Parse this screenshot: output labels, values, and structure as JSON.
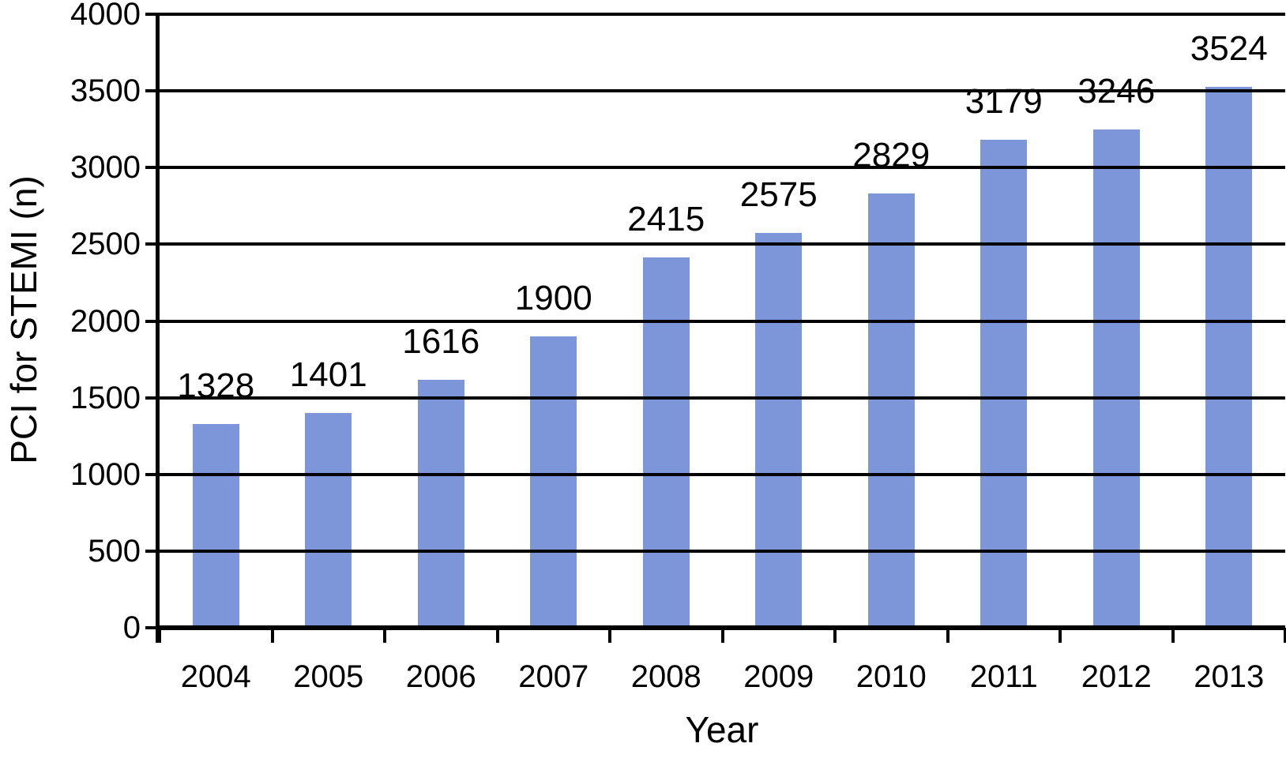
{
  "chart_data": {
    "type": "bar",
    "xlabel": "Year",
    "ylabel": "PCI for STEMI (n)",
    "categories": [
      "2004",
      "2005",
      "2006",
      "2007",
      "2008",
      "2009",
      "2010",
      "2011",
      "2012",
      "2013"
    ],
    "values": [
      1328,
      1401,
      1616,
      1900,
      2415,
      2575,
      2829,
      3179,
      3246,
      3524
    ],
    "series": [
      {
        "name": "PCI for STEMI",
        "values": [
          1328,
          1401,
          1616,
          1900,
          2415,
          2575,
          2829,
          3179,
          3246,
          3524
        ]
      }
    ],
    "ytick_labels": [
      "0",
      "500",
      "1000",
      "1500",
      "2000",
      "2500",
      "3000",
      "3500",
      "4000"
    ],
    "ylim": [
      0,
      4000
    ],
    "ytick_interval": 500,
    "grid": "horizontal-only, black lines drawn over bars",
    "legend": "none",
    "data_labels": "values shown above each bar",
    "bar_color": "#7D95D9",
    "axis_color": "#000000",
    "text_color": "#000000",
    "background_color": "#FFFFFF"
  }
}
